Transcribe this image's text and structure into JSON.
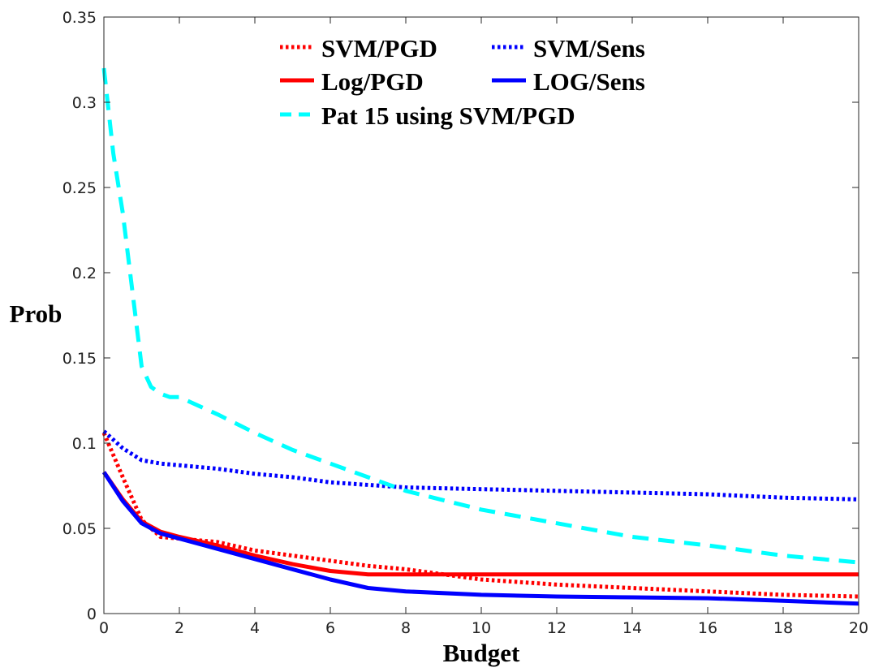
{
  "chart_data": {
    "type": "line",
    "title": "",
    "xlabel": "Budget",
    "ylabel": "Prob",
    "xlim": [
      0,
      20
    ],
    "ylim": [
      0,
      0.35
    ],
    "xticks": [
      0,
      2,
      4,
      6,
      8,
      10,
      12,
      14,
      16,
      18,
      20
    ],
    "yticks": [
      0,
      0.05,
      0.1,
      0.15,
      0.2,
      0.25,
      0.3,
      0.35
    ],
    "xtick_labels": [
      "0",
      "2",
      "4",
      "6",
      "8",
      "10",
      "12",
      "14",
      "16",
      "18",
      "20"
    ],
    "ytick_labels": [
      "0",
      "0.05",
      "0.1",
      "0.15",
      "0.2",
      "0.25",
      "0.3",
      "0.35"
    ],
    "grid": false,
    "legend_position": "top-center",
    "series": [
      {
        "name": "SVM/PGD",
        "color": "#ff0000",
        "style": "dotted",
        "x": [
          0,
          0.5,
          1,
          1.5,
          2,
          3,
          4,
          5,
          6,
          7,
          8,
          9,
          10,
          12,
          14,
          16,
          18,
          20
        ],
        "y": [
          0.106,
          0.08,
          0.055,
          0.045,
          0.044,
          0.042,
          0.037,
          0.034,
          0.031,
          0.028,
          0.026,
          0.023,
          0.02,
          0.017,
          0.015,
          0.013,
          0.011,
          0.01
        ]
      },
      {
        "name": "SVM/Sens",
        "color": "#0000ff",
        "style": "dotted",
        "x": [
          0,
          0.5,
          1,
          1.5,
          2,
          3,
          4,
          5,
          6,
          8,
          10,
          12,
          14,
          16,
          18,
          20
        ],
        "y": [
          0.107,
          0.097,
          0.09,
          0.088,
          0.087,
          0.085,
          0.082,
          0.08,
          0.077,
          0.074,
          0.073,
          0.072,
          0.071,
          0.07,
          0.068,
          0.067
        ]
      },
      {
        "name": "Log/PGD",
        "color": "#ff0000",
        "style": "solid",
        "x": [
          0,
          0.5,
          1,
          1.5,
          2,
          3,
          4,
          5,
          6,
          7,
          8,
          10,
          12,
          14,
          16,
          18,
          20
        ],
        "y": [
          0.083,
          0.067,
          0.054,
          0.048,
          0.045,
          0.04,
          0.034,
          0.029,
          0.025,
          0.023,
          0.023,
          0.023,
          0.023,
          0.023,
          0.023,
          0.023,
          0.023
        ]
      },
      {
        "name": "LOG/Sens",
        "color": "#0000ff",
        "style": "solid",
        "x": [
          0,
          0.5,
          1,
          1.5,
          2,
          3,
          4,
          5,
          6,
          7,
          8,
          10,
          12,
          14,
          16,
          18,
          20
        ],
        "y": [
          0.083,
          0.066,
          0.053,
          0.047,
          0.044,
          0.038,
          0.032,
          0.026,
          0.02,
          0.015,
          0.013,
          0.011,
          0.01,
          0.0095,
          0.009,
          0.0075,
          0.0058
        ]
      },
      {
        "name": "Pat 15 using SVM/PGD",
        "color": "#00ffff",
        "style": "dashed",
        "x": [
          0,
          0.25,
          0.5,
          0.75,
          1,
          1.25,
          1.5,
          1.75,
          2,
          3,
          4,
          5,
          6,
          7,
          8,
          10,
          12,
          14,
          16,
          18,
          20
        ],
        "y": [
          0.32,
          0.27,
          0.235,
          0.19,
          0.145,
          0.133,
          0.129,
          0.127,
          0.127,
          0.117,
          0.106,
          0.096,
          0.088,
          0.08,
          0.072,
          0.061,
          0.053,
          0.045,
          0.04,
          0.034,
          0.03
        ]
      }
    ],
    "legend": [
      {
        "name": "SVM/PGD",
        "color": "#ff0000",
        "style": "dotted"
      },
      {
        "name": "SVM/Sens",
        "color": "#0000ff",
        "style": "dotted"
      },
      {
        "name": "Log/PGD",
        "color": "#ff0000",
        "style": "solid"
      },
      {
        "name": "LOG/Sens",
        "color": "#0000ff",
        "style": "solid"
      },
      {
        "name": "Pat 15 using SVM/PGD",
        "color": "#00ffff",
        "style": "dashed"
      }
    ]
  }
}
